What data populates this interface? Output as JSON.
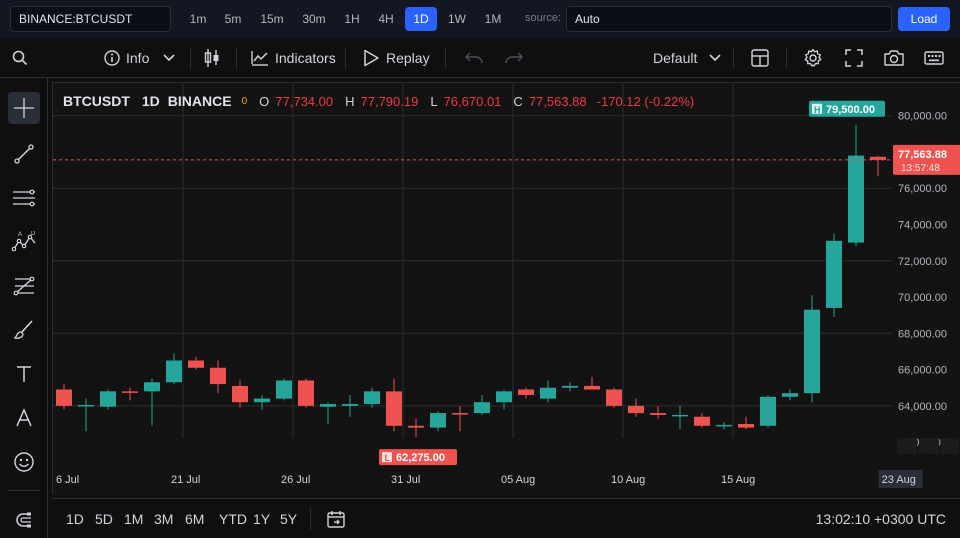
{
  "topbar": {
    "symbol": "BINANCE:BTCUSDT",
    "intervals": [
      "1m",
      "5m",
      "15m",
      "30m",
      "1H",
      "4H",
      "1D",
      "1W",
      "1M"
    ],
    "active_interval": "1D",
    "source_label": "source:",
    "source_value": "Auto",
    "load_label": "Load"
  },
  "toolbar": {
    "info_label": "Info",
    "indicators_label": "Indicators",
    "replay_label": "Replay",
    "layout_label": "Default"
  },
  "legend": {
    "symbol": "BTCUSDT",
    "interval": "1D",
    "exchange": "BINANCE",
    "indicator_count": "0",
    "o_label": "O",
    "open": "77,734.00",
    "h_label": "H",
    "high": "77,790.19",
    "l_label": "L",
    "low": "76,670.01",
    "c_label": "C",
    "close": "77,563.88",
    "change": "-170.12 (-0.22%)"
  },
  "chart_data": {
    "type": "candlestick",
    "y_axis_labels": [
      "80,000.00",
      "78,000.00",
      "76,000.00",
      "74,000.00",
      "72,000.00",
      "70,000.00",
      "68,000.00",
      "66,000.00",
      "64,000.00",
      "62,000.00"
    ],
    "ylim": [
      61400,
      80700
    ],
    "x_axis_labels": [
      "6 Jul",
      "21 Jul",
      "26 Jul",
      "31 Jul",
      "05 Aug",
      "10 Aug",
      "15 Aug",
      "23 Aug"
    ],
    "last_price": "77,563.88",
    "countdown": "13:57:48",
    "high_marker": {
      "tag": "H",
      "value": "79,500.00"
    },
    "low_marker": {
      "tag": "L",
      "value": "62,275.00"
    },
    "colors": {
      "up": "#26a69a",
      "down": "#ef5350",
      "grid": "#2a2a2a"
    },
    "candles": [
      {
        "o": 64900,
        "h": 65200,
        "l": 63800,
        "c": 64000
      },
      {
        "o": 64000,
        "h": 64400,
        "l": 62600,
        "c": 64050
      },
      {
        "o": 63950,
        "h": 64900,
        "l": 63800,
        "c": 64800
      },
      {
        "o": 64800,
        "h": 65000,
        "l": 64300,
        "c": 64750
      },
      {
        "o": 64800,
        "h": 65500,
        "l": 62900,
        "c": 65300
      },
      {
        "o": 65300,
        "h": 66900,
        "l": 65200,
        "c": 66500
      },
      {
        "o": 66500,
        "h": 66700,
        "l": 66000,
        "c": 66100
      },
      {
        "o": 66100,
        "h": 66500,
        "l": 64700,
        "c": 65200
      },
      {
        "o": 65100,
        "h": 65400,
        "l": 63900,
        "c": 64200
      },
      {
        "o": 64200,
        "h": 64600,
        "l": 63800,
        "c": 64400
      },
      {
        "o": 64400,
        "h": 65500,
        "l": 64300,
        "c": 65400
      },
      {
        "o": 65400,
        "h": 65500,
        "l": 63900,
        "c": 64000
      },
      {
        "o": 63950,
        "h": 64200,
        "l": 63000,
        "c": 64100
      },
      {
        "o": 64000,
        "h": 64600,
        "l": 63400,
        "c": 64100
      },
      {
        "o": 64100,
        "h": 65000,
        "l": 63900,
        "c": 64800
      },
      {
        "o": 64800,
        "h": 65500,
        "l": 62600,
        "c": 62900
      },
      {
        "o": 62900,
        "h": 63300,
        "l": 62275,
        "c": 62800
      },
      {
        "o": 62800,
        "h": 63700,
        "l": 62600,
        "c": 63600
      },
      {
        "o": 63600,
        "h": 64000,
        "l": 62600,
        "c": 63550
      },
      {
        "o": 63600,
        "h": 64600,
        "l": 63500,
        "c": 64200
      },
      {
        "o": 64200,
        "h": 64900,
        "l": 63800,
        "c": 64800
      },
      {
        "o": 64900,
        "h": 65000,
        "l": 64400,
        "c": 64600
      },
      {
        "o": 64400,
        "h": 65400,
        "l": 64200,
        "c": 65000
      },
      {
        "o": 65000,
        "h": 65300,
        "l": 64800,
        "c": 65100
      },
      {
        "o": 65100,
        "h": 65600,
        "l": 64900,
        "c": 64900
      },
      {
        "o": 64900,
        "h": 65000,
        "l": 63900,
        "c": 64000
      },
      {
        "o": 64000,
        "h": 64400,
        "l": 63400,
        "c": 63600
      },
      {
        "o": 63600,
        "h": 64000,
        "l": 63300,
        "c": 63500
      },
      {
        "o": 63500,
        "h": 64000,
        "l": 62700,
        "c": 63500
      },
      {
        "o": 63400,
        "h": 63600,
        "l": 62800,
        "c": 62900
      },
      {
        "o": 62900,
        "h": 63100,
        "l": 62700,
        "c": 62950
      },
      {
        "o": 63000,
        "h": 63400,
        "l": 62700,
        "c": 62800
      },
      {
        "o": 62900,
        "h": 64600,
        "l": 62800,
        "c": 64500
      },
      {
        "o": 64500,
        "h": 64900,
        "l": 64300,
        "c": 64700
      },
      {
        "o": 64700,
        "h": 70100,
        "l": 64200,
        "c": 69300
      },
      {
        "o": 69400,
        "h": 73500,
        "l": 68900,
        "c": 73100
      },
      {
        "o": 73000,
        "h": 79500,
        "l": 72800,
        "c": 77800
      },
      {
        "o": 77734,
        "h": 77790,
        "l": 76670,
        "c": 77564
      }
    ]
  },
  "bottombar": {
    "ranges": [
      "1D",
      "5D",
      "1M",
      "3M",
      "6M",
      "YTD",
      "1Y",
      "5Y"
    ],
    "clock": "13:02:10 +0300 UTC"
  }
}
